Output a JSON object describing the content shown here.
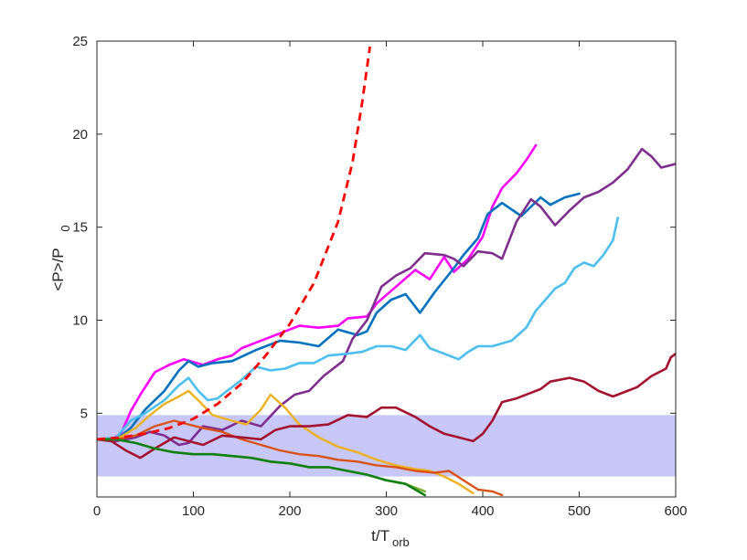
{
  "chart_data": {
    "type": "line",
    "title": "",
    "xlabel": {
      "main": "t/T",
      "sub": "orb"
    },
    "ylabel": {
      "main": "<P>/P",
      "sub": "0"
    },
    "xlim": [
      0,
      600
    ],
    "ylim": [
      0.5,
      25
    ],
    "xticks": [
      0,
      100,
      200,
      300,
      400,
      500,
      600
    ],
    "yticks": [
      5,
      10,
      15,
      20,
      25
    ],
    "grid": false,
    "legend": "none",
    "band": {
      "y0": 1.6,
      "y1": 4.9,
      "color": "#c8c8f8"
    },
    "series": [
      {
        "color": "#ff00ff",
        "width": 2.6,
        "points": [
          [
            0,
            3.6
          ],
          [
            15,
            3.6
          ],
          [
            25,
            3.9
          ],
          [
            35,
            5.1
          ],
          [
            45,
            6.0
          ],
          [
            60,
            7.2
          ],
          [
            75,
            7.6
          ],
          [
            90,
            7.9
          ],
          [
            110,
            7.6
          ],
          [
            125,
            7.9
          ],
          [
            140,
            8.1
          ],
          [
            150,
            8.5
          ],
          [
            170,
            8.9
          ],
          [
            190,
            9.3
          ],
          [
            210,
            9.7
          ],
          [
            230,
            9.6
          ],
          [
            250,
            9.7
          ],
          [
            260,
            10.1
          ],
          [
            280,
            10.2
          ],
          [
            290,
            10.9
          ],
          [
            310,
            11.8
          ],
          [
            330,
            12.7
          ],
          [
            345,
            12.2
          ],
          [
            360,
            13.4
          ],
          [
            370,
            12.6
          ],
          [
            385,
            13.3
          ],
          [
            400,
            14.5
          ],
          [
            410,
            16.1
          ],
          [
            420,
            17.1
          ],
          [
            435,
            17.9
          ],
          [
            445,
            18.6
          ],
          [
            455,
            19.4
          ]
        ]
      },
      {
        "color": "#0072bd",
        "width": 2.6,
        "points": [
          [
            0,
            3.6
          ],
          [
            20,
            3.6
          ],
          [
            35,
            4.2
          ],
          [
            50,
            5.2
          ],
          [
            70,
            6.2
          ],
          [
            85,
            7.3
          ],
          [
            95,
            7.8
          ],
          [
            105,
            7.5
          ],
          [
            120,
            7.7
          ],
          [
            140,
            7.8
          ],
          [
            165,
            8.4
          ],
          [
            190,
            8.9
          ],
          [
            210,
            8.8
          ],
          [
            230,
            8.6
          ],
          [
            250,
            9.5
          ],
          [
            270,
            9.2
          ],
          [
            280,
            9.4
          ],
          [
            290,
            10.4
          ],
          [
            305,
            11.1
          ],
          [
            320,
            11.4
          ],
          [
            335,
            10.4
          ],
          [
            350,
            11.5
          ],
          [
            370,
            12.8
          ],
          [
            380,
            13.5
          ],
          [
            395,
            14.4
          ],
          [
            405,
            15.7
          ],
          [
            420,
            16.3
          ],
          [
            440,
            15.6
          ],
          [
            460,
            16.6
          ],
          [
            470,
            16.2
          ],
          [
            485,
            16.6
          ],
          [
            500,
            16.8
          ]
        ]
      },
      {
        "color": "#7e2f8e",
        "width": 2.6,
        "points": [
          [
            0,
            3.6
          ],
          [
            20,
            3.5
          ],
          [
            40,
            3.7
          ],
          [
            55,
            4.0
          ],
          [
            70,
            3.8
          ],
          [
            85,
            3.3
          ],
          [
            95,
            3.4
          ],
          [
            110,
            4.3
          ],
          [
            130,
            4.1
          ],
          [
            150,
            4.6
          ],
          [
            170,
            4.3
          ],
          [
            190,
            5.4
          ],
          [
            205,
            6.0
          ],
          [
            220,
            6.2
          ],
          [
            235,
            7.0
          ],
          [
            255,
            7.8
          ],
          [
            265,
            9.0
          ],
          [
            280,
            10.0
          ],
          [
            295,
            11.8
          ],
          [
            310,
            12.4
          ],
          [
            325,
            12.8
          ],
          [
            340,
            13.6
          ],
          [
            360,
            13.5
          ],
          [
            370,
            13.3
          ],
          [
            380,
            12.9
          ],
          [
            395,
            13.7
          ],
          [
            410,
            13.6
          ],
          [
            420,
            13.3
          ],
          [
            435,
            15.3
          ],
          [
            450,
            16.5
          ],
          [
            460,
            16.1
          ],
          [
            475,
            15.1
          ],
          [
            490,
            15.9
          ],
          [
            505,
            16.6
          ],
          [
            520,
            16.9
          ],
          [
            535,
            17.4
          ],
          [
            550,
            18.1
          ],
          [
            565,
            19.2
          ],
          [
            575,
            18.8
          ],
          [
            585,
            18.2
          ],
          [
            600,
            18.4
          ]
        ]
      },
      {
        "color": "#4dbeee",
        "width": 2.6,
        "points": [
          [
            0,
            3.6
          ],
          [
            20,
            3.7
          ],
          [
            35,
            4.6
          ],
          [
            50,
            5.0
          ],
          [
            70,
            5.7
          ],
          [
            85,
            6.5
          ],
          [
            95,
            6.9
          ],
          [
            105,
            6.2
          ],
          [
            115,
            5.7
          ],
          [
            125,
            5.8
          ],
          [
            135,
            6.2
          ],
          [
            150,
            6.8
          ],
          [
            165,
            7.5
          ],
          [
            180,
            7.3
          ],
          [
            195,
            7.4
          ],
          [
            210,
            7.7
          ],
          [
            225,
            7.7
          ],
          [
            240,
            8.1
          ],
          [
            260,
            8.2
          ],
          [
            275,
            8.3
          ],
          [
            290,
            8.6
          ],
          [
            305,
            8.6
          ],
          [
            320,
            8.4
          ],
          [
            335,
            9.2
          ],
          [
            345,
            8.5
          ],
          [
            360,
            8.2
          ],
          [
            375,
            7.9
          ],
          [
            385,
            8.3
          ],
          [
            395,
            8.6
          ],
          [
            410,
            8.6
          ],
          [
            430,
            8.9
          ],
          [
            445,
            9.6
          ],
          [
            455,
            10.5
          ],
          [
            465,
            11.1
          ],
          [
            475,
            11.7
          ],
          [
            485,
            12.0
          ],
          [
            495,
            12.8
          ],
          [
            505,
            13.1
          ],
          [
            515,
            12.9
          ],
          [
            525,
            13.5
          ],
          [
            535,
            14.3
          ],
          [
            540,
            15.5
          ]
        ]
      },
      {
        "color": "#edb120",
        "width": 2.4,
        "points": [
          [
            0,
            3.6
          ],
          [
            20,
            3.6
          ],
          [
            40,
            4.2
          ],
          [
            55,
            4.9
          ],
          [
            70,
            5.5
          ],
          [
            85,
            5.9
          ],
          [
            95,
            6.2
          ],
          [
            105,
            5.7
          ],
          [
            120,
            4.9
          ],
          [
            140,
            4.6
          ],
          [
            155,
            4.4
          ],
          [
            170,
            5.2
          ],
          [
            180,
            6.0
          ],
          [
            195,
            5.3
          ],
          [
            210,
            4.4
          ],
          [
            230,
            3.7
          ],
          [
            250,
            3.2
          ],
          [
            270,
            2.9
          ],
          [
            290,
            2.5
          ],
          [
            310,
            2.2
          ],
          [
            330,
            2.0
          ],
          [
            345,
            1.9
          ],
          [
            360,
            1.6
          ],
          [
            375,
            1.2
          ],
          [
            390,
            0.7
          ]
        ]
      },
      {
        "color": "#d95319",
        "width": 2.4,
        "points": [
          [
            0,
            3.6
          ],
          [
            20,
            3.6
          ],
          [
            40,
            3.8
          ],
          [
            60,
            4.3
          ],
          [
            80,
            4.6
          ],
          [
            95,
            4.4
          ],
          [
            110,
            4.2
          ],
          [
            130,
            4.0
          ],
          [
            150,
            3.6
          ],
          [
            170,
            3.3
          ],
          [
            190,
            3.0
          ],
          [
            210,
            2.8
          ],
          [
            230,
            2.7
          ],
          [
            250,
            2.5
          ],
          [
            270,
            2.4
          ],
          [
            290,
            2.2
          ],
          [
            310,
            2.1
          ],
          [
            330,
            1.9
          ],
          [
            350,
            1.8
          ],
          [
            365,
            1.9
          ],
          [
            380,
            1.4
          ],
          [
            395,
            0.9
          ],
          [
            410,
            0.8
          ],
          [
            420,
            0.6
          ]
        ]
      },
      {
        "color": "#a2142f",
        "width": 2.6,
        "points": [
          [
            0,
            3.6
          ],
          [
            15,
            3.5
          ],
          [
            30,
            3.0
          ],
          [
            45,
            2.6
          ],
          [
            60,
            3.1
          ],
          [
            80,
            3.7
          ],
          [
            95,
            3.5
          ],
          [
            110,
            3.3
          ],
          [
            130,
            3.8
          ],
          [
            150,
            3.7
          ],
          [
            170,
            3.6
          ],
          [
            185,
            4.1
          ],
          [
            200,
            4.3
          ],
          [
            220,
            4.3
          ],
          [
            240,
            4.4
          ],
          [
            260,
            4.9
          ],
          [
            280,
            4.8
          ],
          [
            295,
            5.3
          ],
          [
            310,
            5.3
          ],
          [
            330,
            4.8
          ],
          [
            345,
            4.3
          ],
          [
            360,
            3.9
          ],
          [
            375,
            3.7
          ],
          [
            390,
            3.5
          ],
          [
            400,
            3.9
          ],
          [
            410,
            4.6
          ],
          [
            420,
            5.6
          ],
          [
            435,
            5.8
          ],
          [
            450,
            6.1
          ],
          [
            460,
            6.3
          ],
          [
            470,
            6.7
          ],
          [
            490,
            6.9
          ],
          [
            505,
            6.7
          ],
          [
            520,
            6.2
          ],
          [
            535,
            5.9
          ],
          [
            550,
            6.2
          ],
          [
            560,
            6.4
          ],
          [
            575,
            7.0
          ],
          [
            590,
            7.4
          ],
          [
            595,
            8.0
          ],
          [
            600,
            8.2
          ]
        ]
      },
      {
        "color": "#77ac30",
        "width": 2.4,
        "points": [
          [
            0,
            3.6
          ],
          [
            20,
            3.6
          ],
          [
            40,
            3.4
          ],
          [
            60,
            3.1
          ],
          [
            80,
            2.9
          ],
          [
            100,
            2.8
          ],
          [
            120,
            2.8
          ],
          [
            140,
            2.7
          ],
          [
            160,
            2.6
          ],
          [
            180,
            2.4
          ],
          [
            200,
            2.3
          ],
          [
            220,
            2.1
          ],
          [
            240,
            2.1
          ],
          [
            260,
            1.9
          ],
          [
            280,
            1.7
          ],
          [
            300,
            1.4
          ],
          [
            320,
            1.2
          ],
          [
            340,
            0.8
          ]
        ]
      },
      {
        "color": "#118011",
        "width": 2.6,
        "points": [
          [
            0,
            3.6
          ],
          [
            20,
            3.6
          ],
          [
            40,
            3.4
          ],
          [
            60,
            3.1
          ],
          [
            80,
            2.9
          ],
          [
            100,
            2.8
          ],
          [
            120,
            2.8
          ],
          [
            140,
            2.7
          ],
          [
            160,
            2.6
          ],
          [
            180,
            2.4
          ],
          [
            200,
            2.3
          ],
          [
            220,
            2.1
          ],
          [
            240,
            2.1
          ],
          [
            260,
            1.9
          ],
          [
            280,
            1.7
          ],
          [
            300,
            1.4
          ],
          [
            320,
            1.2
          ],
          [
            340,
            0.6
          ]
        ]
      },
      {
        "color": "#ff0000",
        "width": 2.8,
        "dashed": true,
        "points": [
          [
            0,
            3.6
          ],
          [
            25,
            3.7
          ],
          [
            50,
            3.9
          ],
          [
            75,
            4.2
          ],
          [
            100,
            4.7
          ],
          [
            125,
            5.5
          ],
          [
            150,
            6.6
          ],
          [
            175,
            8.1
          ],
          [
            200,
            9.8
          ],
          [
            225,
            12.0
          ],
          [
            250,
            15.3
          ],
          [
            265,
            18.5
          ],
          [
            275,
            21.7
          ],
          [
            283,
            24.7
          ]
        ]
      }
    ]
  }
}
